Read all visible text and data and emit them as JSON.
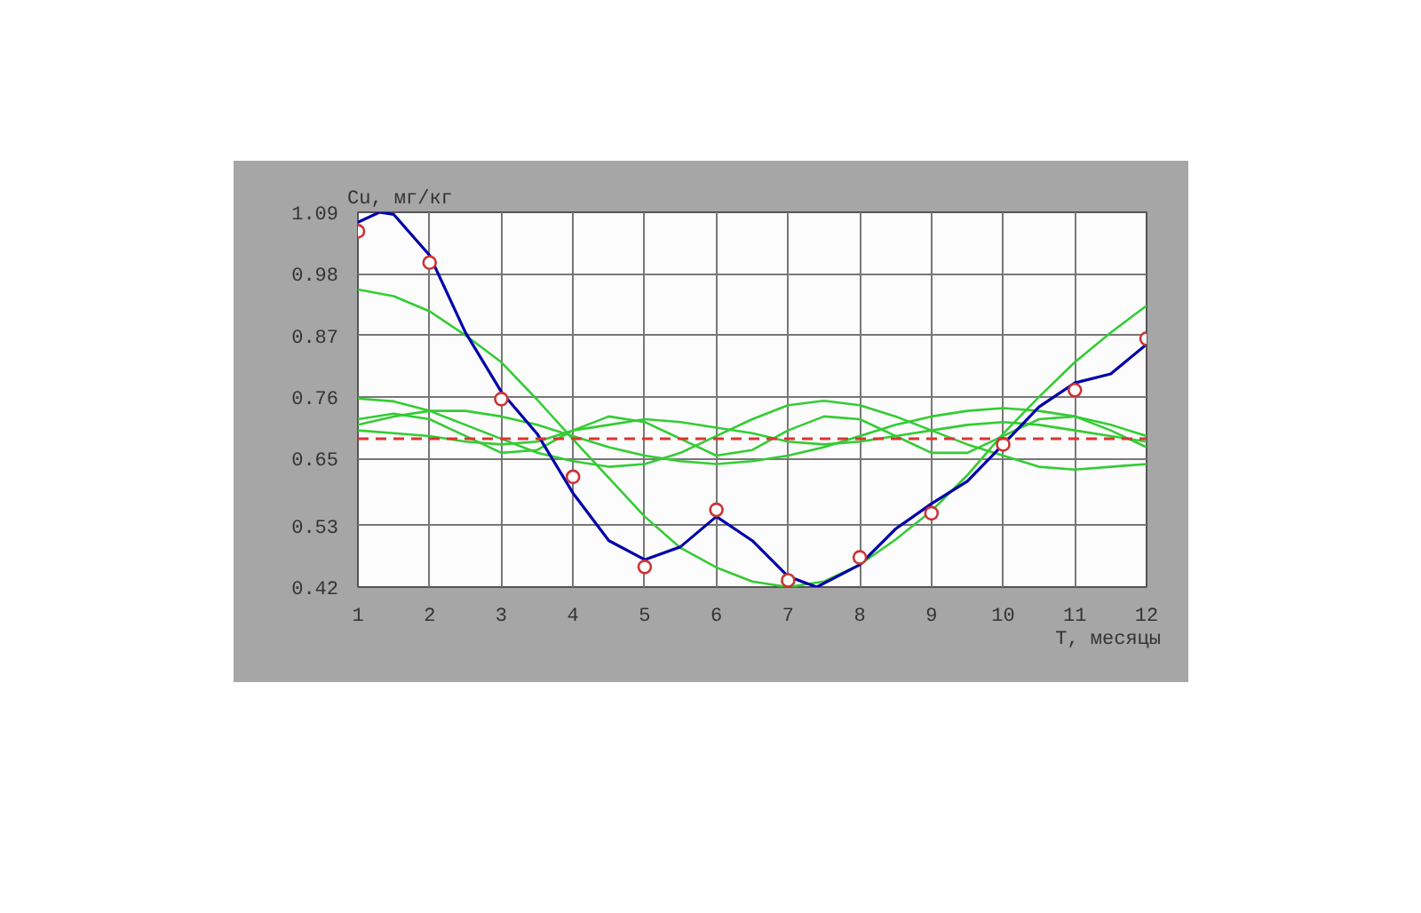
{
  "chart_data": {
    "type": "line",
    "xlabel": "T, месяцы",
    "ylabel": "Cu, мг/кг",
    "xlim": [
      1,
      12
    ],
    "xticks": [
      1,
      2,
      3,
      4,
      5,
      6,
      7,
      8,
      9,
      10,
      11,
      12
    ],
    "ylim": [
      0.42,
      1.09
    ],
    "yticks": [
      0.42,
      0.53,
      0.65,
      0.76,
      0.87,
      0.98,
      1.09
    ],
    "grid": true,
    "line_style": "solid",
    "marker": "none",
    "x": [
      1,
      1.5,
      2,
      2.5,
      3,
      3.5,
      4,
      4.5,
      5,
      5.5,
      6,
      6.5,
      7,
      7.5,
      8,
      8.5,
      9,
      9.5,
      10,
      10.5,
      11,
      11.5,
      12
    ],
    "series": [
      {
        "color": "#33cc33",
        "values": [
          0.952,
          0.94,
          0.913,
          0.87,
          0.822,
          0.755,
          0.684,
          0.615,
          0.546,
          0.49,
          0.455,
          0.43,
          0.42,
          0.43,
          0.46,
          0.505,
          0.556,
          0.62,
          0.694,
          0.76,
          0.822,
          0.875,
          0.923
        ]
      },
      {
        "color": "#33cc33",
        "values": [
          0.757,
          0.752,
          0.735,
          0.71,
          0.685,
          0.66,
          0.645,
          0.635,
          0.64,
          0.66,
          0.69,
          0.72,
          0.745,
          0.753,
          0.745,
          0.725,
          0.7,
          0.675,
          0.655,
          0.635,
          0.63,
          0.635,
          0.64
        ]
      },
      {
        "color": "#33cc33",
        "values": [
          0.72,
          0.73,
          0.72,
          0.69,
          0.66,
          0.665,
          0.7,
          0.725,
          0.715,
          0.685,
          0.655,
          0.665,
          0.7,
          0.725,
          0.72,
          0.69,
          0.66,
          0.66,
          0.69,
          0.72,
          0.725,
          0.7,
          0.67
        ]
      },
      {
        "color": "#33cc33",
        "values": [
          0.7,
          0.695,
          0.69,
          0.68,
          0.675,
          0.68,
          0.7,
          0.71,
          0.72,
          0.715,
          0.705,
          0.695,
          0.68,
          0.675,
          0.68,
          0.69,
          0.7,
          0.71,
          0.715,
          0.71,
          0.7,
          0.69,
          0.68
        ]
      },
      {
        "color": "#33cc33",
        "values": [
          0.71,
          0.725,
          0.735,
          0.735,
          0.725,
          0.71,
          0.69,
          0.67,
          0.655,
          0.645,
          0.64,
          0.645,
          0.655,
          0.67,
          0.69,
          0.71,
          0.725,
          0.735,
          0.74,
          0.735,
          0.725,
          0.71,
          0.69
        ]
      },
      {
        "color": "#0000aa",
        "x": [
          1,
          1.3,
          1.5,
          2,
          2.5,
          3,
          3.5,
          4,
          4.5,
          5,
          5.5,
          6,
          6.5,
          7,
          7.4,
          8,
          8.5,
          9,
          9.5,
          10,
          10.5,
          11,
          11.5,
          12
        ],
        "values": [
          1.072,
          1.09,
          1.086,
          1.013,
          0.875,
          0.769,
          0.694,
          0.588,
          0.503,
          0.469,
          0.492,
          0.546,
          0.503,
          0.439,
          0.42,
          0.46,
          0.524,
          0.569,
          0.609,
          0.675,
          0.742,
          0.785,
          0.801,
          0.854
        ]
      },
      {
        "type": "scatter",
        "marker": "circle",
        "color": "#cc3333",
        "x": [
          1,
          2,
          3,
          4,
          5,
          6,
          7,
          8,
          9,
          10,
          11,
          12
        ],
        "values": [
          1.056,
          1.0,
          0.756,
          0.617,
          0.456,
          0.558,
          0.432,
          0.473,
          0.552,
          0.675,
          0.772,
          0.864
        ]
      }
    ],
    "ref_lines": [
      {
        "axis": "y",
        "value": 0.685,
        "color": "#dd3333",
        "line_style": "dashed"
      }
    ]
  }
}
